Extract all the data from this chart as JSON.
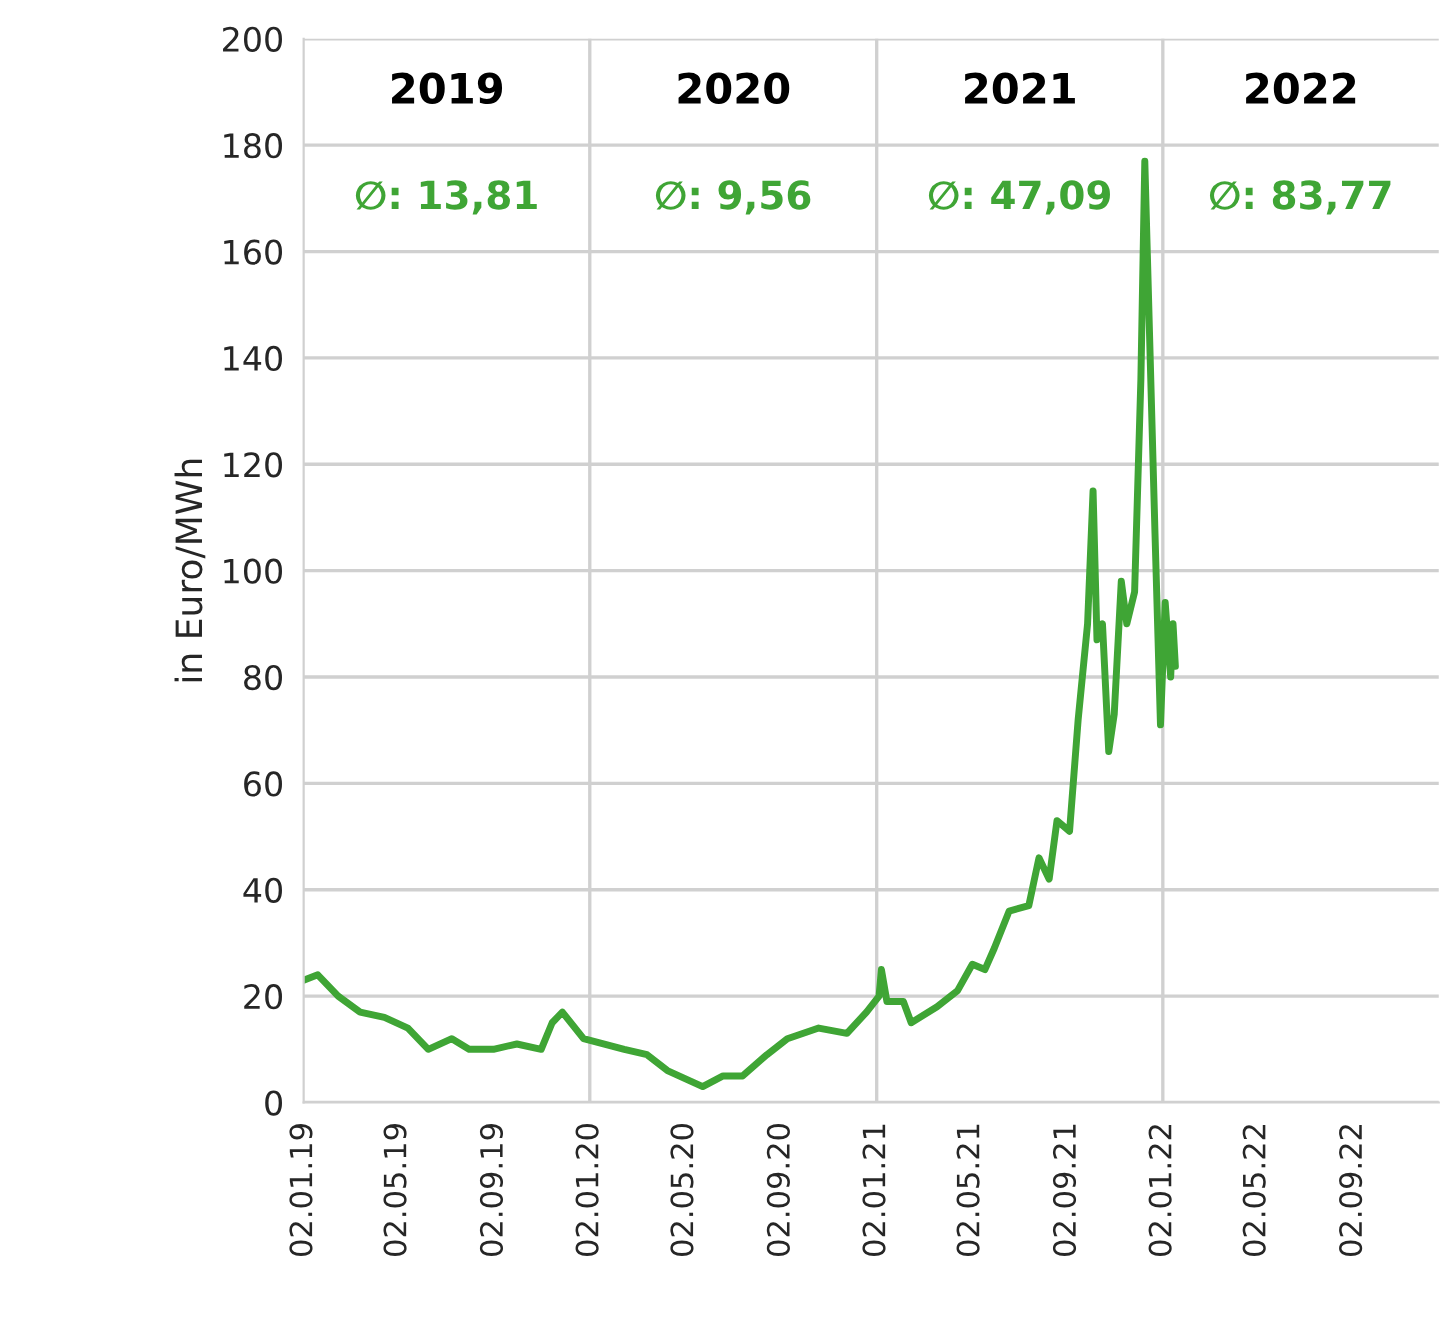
{
  "chart_data": {
    "type": "line",
    "ylabel": "in Euro/MWh",
    "annotations": [
      "2019",
      "2020",
      "2021",
      "2022",
      "∅: 13,81",
      "∅: 9,56",
      "∅: 47,09",
      "∅: 83,77"
    ],
    "x": [
      "2019-01-02",
      "2019-01-20",
      "2019-02-15",
      "2019-03-15",
      "2019-04-15",
      "2019-05-15",
      "2019-06-10",
      "2019-07-10",
      "2019-08-01",
      "2019-09-01",
      "2019-10-01",
      "2019-11-01",
      "2019-11-15",
      "2019-11-28",
      "2019-12-25",
      "2020-02-15",
      "2020-03-15",
      "2020-04-10",
      "2020-05-25",
      "2020-06-20",
      "2020-07-15",
      "2020-08-15",
      "2020-09-10",
      "2020-10-20",
      "2020-11-25",
      "2020-12-20",
      "2021-01-05",
      "2021-01-08",
      "2021-01-15",
      "2021-02-05",
      "2021-02-15",
      "2021-03-20",
      "2021-04-15",
      "2021-05-04",
      "2021-05-20",
      "2021-06-01",
      "2021-06-20",
      "2021-07-15",
      "2021-07-28",
      "2021-08-10",
      "2021-08-20",
      "2021-09-05",
      "2021-09-16",
      "2021-09-28",
      "2021-10-05",
      "2021-10-10",
      "2021-10-17",
      "2021-10-25",
      "2021-11-01",
      "2021-11-10",
      "2021-11-17",
      "2021-11-27",
      "2021-12-05",
      "2021-12-10",
      "2021-12-23",
      "2021-12-30",
      "2022-01-05",
      "2022-01-12",
      "2022-01-15",
      "2022-01-18"
    ],
    "series": [
      {
        "color": "#3fa535",
        "values": [
          23,
          24,
          20,
          17,
          16,
          14,
          10,
          12,
          10,
          10,
          11,
          10,
          15,
          17,
          12,
          10,
          9,
          6,
          3,
          5,
          5,
          9,
          12,
          14,
          13,
          17,
          20,
          25,
          19,
          19,
          15,
          18,
          21,
          26,
          25,
          29,
          36,
          37,
          46,
          42,
          53,
          51,
          72,
          90,
          115,
          87,
          90,
          66,
          73,
          98,
          90,
          96,
          136,
          177,
          107,
          71,
          94,
          80,
          90,
          82
        ]
      }
    ],
    "xlim": [
      "2019-01-02",
      "2022-12-20"
    ],
    "xticks": [
      {
        "value": "2019-01-02",
        "label": "02.01.19"
      },
      {
        "value": "2019-05-02",
        "label": "02.05.19"
      },
      {
        "value": "2019-09-02",
        "label": "02.09.19"
      },
      {
        "value": "2020-01-02",
        "label": "02.01.20"
      },
      {
        "value": "2020-05-02",
        "label": "02.05.20"
      },
      {
        "value": "2020-09-02",
        "label": "02.09.20"
      },
      {
        "value": "2021-01-02",
        "label": "02.01.21"
      },
      {
        "value": "2021-05-02",
        "label": "02.05.21"
      },
      {
        "value": "2021-09-02",
        "label": "02.09.21"
      },
      {
        "value": "2022-01-02",
        "label": "02.01.22"
      },
      {
        "value": "2022-05-02",
        "label": "02.05.22"
      },
      {
        "value": "2022-09-02",
        "label": "02.09.22"
      }
    ],
    "ylim": [
      0,
      200
    ],
    "yticks": [
      0,
      20,
      40,
      60,
      80,
      100,
      120,
      140,
      160,
      180,
      200
    ],
    "grid": "y",
    "ref_lines": [
      {
        "axis": "x",
        "value": "2020-01-02",
        "color": "#d0d0d0"
      },
      {
        "axis": "x",
        "value": "2021-01-02",
        "color": "#d0d0d0"
      },
      {
        "axis": "x",
        "value": "2022-01-02",
        "color": "#d0d0d0"
      }
    ]
  }
}
